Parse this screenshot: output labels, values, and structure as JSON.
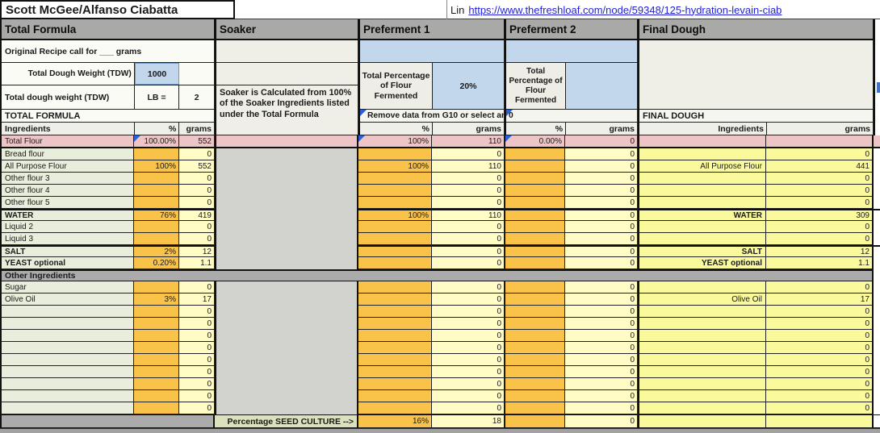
{
  "title": "Scott McGee/Alfanso Ciabatta",
  "link": {
    "prefix": "Lin",
    "url_text": "https://www.thefreshloaf.com/node/59348/125-hydration-levain-ciab"
  },
  "sections": {
    "total_formula": "Total Formula",
    "soaker": "Soaker",
    "preferment1": "Preferment 1",
    "preferment2": "Preferment 2",
    "final_dough": "Final Dough"
  },
  "total_formula": {
    "original_recipe": "Original Recipe call for ___ grams",
    "tdw_label": "Total Dough Weight (TDW)",
    "tdw_value": "1000",
    "tdw2_label": "Total dough weight (TDW)",
    "lb_label": "LB  =",
    "lb_value": "2",
    "band": "TOTAL FORMULA",
    "cols": {
      "ingredients": "Ingredients",
      "pct": "%",
      "grams": "grams"
    },
    "other_band": "Other Ingredients"
  },
  "soaker": {
    "note": "Soaker is Calculated from 100% of the Soaker Ingredients listed under the Total Formula",
    "seed_label": "Percentage SEED CULTURE  -->"
  },
  "preferment1": {
    "tpff_label": "Total Percentage of Flour Fermented",
    "tpff_value": "20%",
    "note": "Remove data from G10 or select an",
    "cols": {
      "pct": "%",
      "grams": "grams"
    },
    "pink": {
      "pct": "100%",
      "grams": "110"
    },
    "seed": {
      "pct": "16%",
      "grams": "18"
    }
  },
  "preferment2": {
    "tpff_label": "Total Percentage of Flour Fermented",
    "tpff_value": "",
    "note": "0",
    "cols": {
      "pct": "%",
      "grams": "grams"
    },
    "pink": {
      "pct": "0.00%",
      "grams": "0"
    },
    "seed": {
      "pct": "",
      "grams": "0"
    }
  },
  "final_dough": {
    "band": "FINAL DOUGH",
    "cols": {
      "ingredients": "Ingredients",
      "grams": "grams"
    }
  },
  "pink_row": {
    "label": "Total Flour",
    "pct": "100.00%",
    "grams": "552"
  },
  "rows": [
    {
      "n": "Bread flour",
      "np": "",
      "ng": "0",
      "p1p": "",
      "p1g": "0",
      "p2p": "",
      "p2g": "0",
      "fn": "",
      "fg": "0"
    },
    {
      "n": "All Purpose Flour",
      "np": "100%",
      "ng": "552",
      "p1p": "100%",
      "p1g": "110",
      "p2p": "",
      "p2g": "0",
      "fn": "All Purpose Flour",
      "fg": "441"
    },
    {
      "n": "Other flour 3",
      "np": "",
      "ng": "0",
      "p1p": "",
      "p1g": "0",
      "p2p": "",
      "p2g": "0",
      "fn": "",
      "fg": "0"
    },
    {
      "n": "Other flour 4",
      "np": "",
      "ng": "0",
      "p1p": "",
      "p1g": "0",
      "p2p": "",
      "p2g": "0",
      "fn": "",
      "fg": "0"
    },
    {
      "n": "Other flour 5",
      "np": "",
      "ng": "0",
      "p1p": "",
      "p1g": "0",
      "p2p": "",
      "p2g": "0",
      "fn": "",
      "fg": "0"
    },
    {
      "n": "WATER",
      "b": true,
      "sep": true,
      "np": "76%",
      "ng": "419",
      "p1p": "100%",
      "p1g": "110",
      "p2p": "",
      "p2g": "0",
      "fn": "WATER",
      "fg": "309"
    },
    {
      "n": "Liquid 2",
      "np": "",
      "ng": "0",
      "p1p": "",
      "p1g": "0",
      "p2p": "",
      "p2g": "0",
      "fn": "",
      "fg": "0"
    },
    {
      "n": "Liquid 3",
      "np": "",
      "ng": "0",
      "p1p": "",
      "p1g": "0",
      "p2p": "",
      "p2g": "0",
      "fn": "",
      "fg": "0"
    },
    {
      "n": "SALT",
      "b": true,
      "sep": true,
      "np": "2%",
      "ng": "12",
      "p1p": "",
      "p1g": "0",
      "p2p": "",
      "p2g": "0",
      "fn": "SALT",
      "fg": "12"
    },
    {
      "n": "YEAST optional",
      "b": true,
      "np": "0.20%",
      "ng": "1.1",
      "p1p": "",
      "p1g": "0",
      "p2p": "",
      "p2g": "0",
      "fn": "YEAST optional",
      "fg": "1.1"
    },
    {
      "band": "Other Ingredients"
    },
    {
      "n": "Sugar",
      "np": "",
      "ng": "0",
      "p1p": "",
      "p1g": "0",
      "p2p": "",
      "p2g": "0",
      "fn": "",
      "fg": "0"
    },
    {
      "n": "Olive Oil",
      "np": "3%",
      "ng": "17",
      "p1p": "",
      "p1g": "0",
      "p2p": "",
      "p2g": "0",
      "fn": "Olive Oil",
      "fg": "17"
    },
    {
      "n": "",
      "np": "",
      "ng": "0",
      "p1p": "",
      "p1g": "0",
      "p2p": "",
      "p2g": "0",
      "fn": "",
      "fg": "0"
    },
    {
      "n": "",
      "np": "",
      "ng": "0",
      "p1p": "",
      "p1g": "0",
      "p2p": "",
      "p2g": "0",
      "fn": "",
      "fg": "0"
    },
    {
      "n": "",
      "np": "",
      "ng": "0",
      "p1p": "",
      "p1g": "0",
      "p2p": "",
      "p2g": "0",
      "fn": "",
      "fg": "0"
    },
    {
      "n": "",
      "np": "",
      "ng": "0",
      "p1p": "",
      "p1g": "0",
      "p2p": "",
      "p2g": "0",
      "fn": "",
      "fg": "0"
    },
    {
      "n": "",
      "np": "",
      "ng": "0",
      "p1p": "",
      "p1g": "0",
      "p2p": "",
      "p2g": "0",
      "fn": "",
      "fg": "0"
    },
    {
      "n": "",
      "np": "",
      "ng": "0",
      "p1p": "",
      "p1g": "0",
      "p2p": "",
      "p2g": "0",
      "fn": "",
      "fg": "0"
    },
    {
      "n": "",
      "np": "",
      "ng": "0",
      "p1p": "",
      "p1g": "0",
      "p2p": "",
      "p2g": "0",
      "fn": "",
      "fg": "0"
    },
    {
      "n": "",
      "np": "",
      "ng": "0",
      "p1p": "",
      "p1g": "0",
      "p2p": "",
      "p2g": "0",
      "fn": "",
      "fg": "0"
    },
    {
      "n": "",
      "np": "",
      "ng": "0",
      "p1p": "",
      "p1g": "0",
      "p2p": "",
      "p2g": "0",
      "fn": "",
      "fg": "0"
    }
  ],
  "colors": {
    "header_gray": "#a9a9a7",
    "pink": "#eec5c7",
    "orange": "#f9c34a",
    "pale_yellow": "#fffdc5",
    "final_dough_yellow": "#fafa9d",
    "blue": "#c2d6ec",
    "label_green": "#e8eedb",
    "seed_green": "#dce1bd",
    "body_gray": "#d2d2cf",
    "link_blue": "#1f1fd8",
    "comment_triangle_blue": "#2f5fd4"
  }
}
